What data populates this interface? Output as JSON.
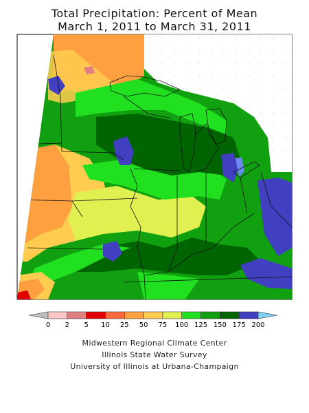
{
  "title": {
    "line1": "Total Precipitation: Percent of Mean",
    "line2": "March 1, 2011 to March 31, 2011"
  },
  "legend": {
    "ticks": [
      "0",
      "2",
      "5",
      "10",
      "25",
      "50",
      "75",
      "100",
      "125",
      "150",
      "175",
      "200"
    ],
    "colors": [
      "#c0c0c0",
      "#ffc8c8",
      "#e08080",
      "#e00000",
      "#ff6a3a",
      "#ffa040",
      "#ffcc50",
      "#e0f050",
      "#20e020",
      "#10a010",
      "#006400",
      "#4040c0",
      "#6a8af0",
      "#80d0f8"
    ]
  },
  "credits": {
    "line1": "Midwestern Regional Climate Center",
    "line2": "Illinois State Water Survey",
    "line3": "University of Illinois at Urbana-Champaign"
  }
}
